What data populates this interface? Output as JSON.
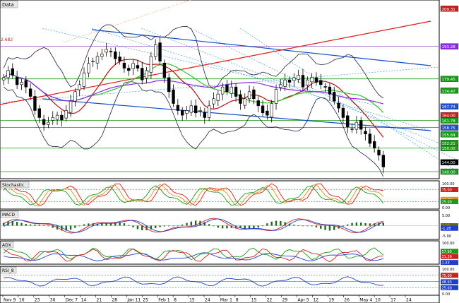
{
  "chart_data": {
    "type": "candlestick",
    "main_panel": {
      "title": "Data",
      "left_annotation": "2.682",
      "price_tags": [
        {
          "value": "209.31",
          "color": "#cc2020"
        },
        {
          "value": "193.28",
          "color": "#8a2be2"
        },
        {
          "value": "179.45",
          "color": "#1a9a1a"
        },
        {
          "value": "174.47",
          "color": "#1a9a1a"
        },
        {
          "value": "167.74",
          "color": "#2050cc"
        },
        {
          "value": "164.00",
          "color": "#cc2020"
        },
        {
          "value": "161.78",
          "color": "#1a9a1a"
        },
        {
          "value": "158.75",
          "color": "#2050cc"
        },
        {
          "value": "155.84",
          "color": "#1a9a1a"
        },
        {
          "value": "152.21",
          "color": "#1a9a1a"
        },
        {
          "value": "150.00",
          "color": "#1a9a1a"
        },
        {
          "value": "144.00",
          "color": "#000000"
        },
        {
          "value": "140.00",
          "color": "#1a9a1a"
        }
      ],
      "horizontal_levels": [
        {
          "value": 193.28,
          "color": "#9a5cc0"
        },
        {
          "value": 179.45,
          "color": "#1a9a1a"
        },
        {
          "value": 161.78,
          "color": "#1a9a1a"
        },
        {
          "value": 158.75,
          "color": "#1a9a1a"
        },
        {
          "value": 150.0,
          "color": "#1a9a1a"
        },
        {
          "value": 140.0,
          "color": "#1a9a1a"
        }
      ],
      "closes": [
        180,
        183,
        181,
        177,
        178,
        176,
        172,
        166,
        163,
        160,
        161,
        163,
        164,
        162,
        166,
        170,
        174,
        177,
        182,
        186,
        187,
        189,
        190,
        192,
        191,
        188,
        187,
        184,
        183,
        186,
        184,
        179,
        183,
        189,
        194,
        187,
        180,
        174,
        169,
        166,
        164,
        166,
        168,
        165,
        166,
        163,
        168,
        171,
        173,
        176,
        174,
        176,
        172,
        169,
        171,
        174,
        171,
        168,
        165,
        164,
        169,
        175,
        177,
        179,
        178,
        180,
        181,
        176,
        179,
        180,
        178,
        177,
        176,
        173,
        170,
        167,
        163,
        159,
        158,
        161,
        158,
        156,
        152,
        150,
        147,
        142
      ]
    },
    "stochastic": {
      "title": "Stochastic",
      "levels": [
        "100.00",
        "75.00",
        "25.00",
        "0.00"
      ],
      "tags": [
        "75.00",
        "34.39",
        "25.00"
      ]
    },
    "macd": {
      "title": "MACD",
      "levels": [
        "5.00",
        "0.00",
        "-5.00"
      ],
      "tags": [
        "0.00",
        "-0.66",
        "-1.28"
      ]
    },
    "adx": {
      "title": "ADX",
      "levels": [
        "100.00",
        "50.00",
        "0.00"
      ],
      "tags": [
        "57.90",
        "31.39",
        "1.33"
      ]
    },
    "rsi": {
      "title": "RSI_8",
      "levels": [
        "100.00",
        "75.00",
        "50.00",
        "25.00",
        "0.00"
      ],
      "tags": [
        "75.00",
        "48.93",
        "25.00"
      ]
    },
    "x_axis": [
      "Nov 9",
      "16",
      "23",
      "30",
      "Dec 7",
      "14",
      "21",
      "28",
      "Jan 11",
      "25",
      "Feb 1",
      "8",
      "15",
      "24",
      "Mar 1",
      "8",
      "15",
      "22",
      "29",
      "Apr 5",
      "12",
      "19",
      "26",
      "May 4",
      "10",
      "17",
      "24"
    ]
  },
  "colors": {
    "bullish": "#ffffff",
    "bearish": "#000000",
    "resistance": "#1050c0",
    "red_trend": "#dd1a1a",
    "purple_ma": "#8a2be2",
    "green_ma": "#2ec42e",
    "darkred_ma": "#b01010",
    "bands": "#202040",
    "fib_fan": "#2a8fd8",
    "grid": "#000000"
  }
}
